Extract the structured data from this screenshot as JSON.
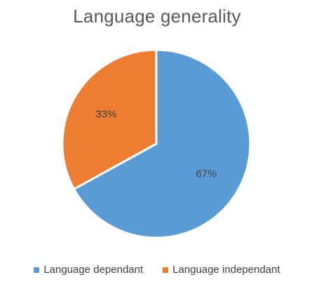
{
  "chart_data": {
    "type": "pie",
    "title": "Language generality",
    "slices": [
      {
        "name": "Language dependant",
        "value": 67,
        "label": "67%",
        "color": "#5B9BD5"
      },
      {
        "name": "Language independant",
        "value": 33,
        "label": "33%",
        "color": "#ED7D31"
      }
    ],
    "legend_position": "bottom"
  }
}
